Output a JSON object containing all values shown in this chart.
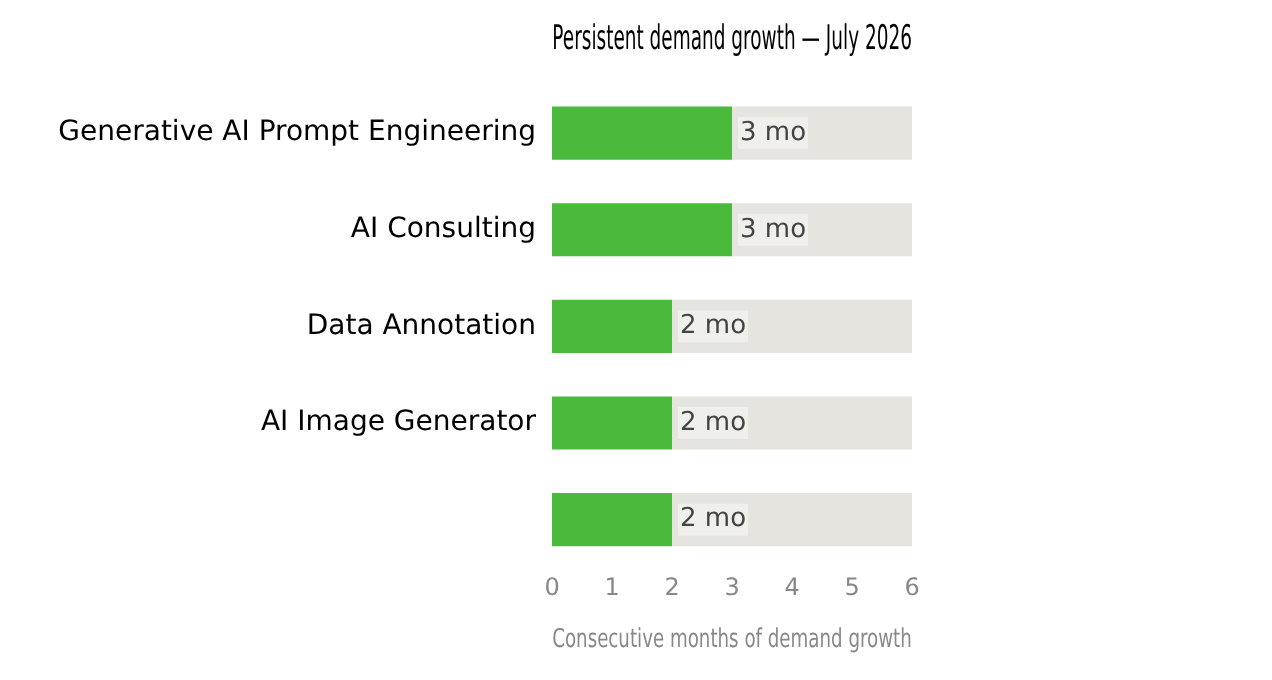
{
  "chart_data": {
    "type": "bar",
    "title": "Persistent demand growth — July 2026",
    "xlabel": "Consecutive months of demand growth",
    "orientation": "horizontal",
    "stacked": true,
    "categories": [
      "Generative AI Prompt Engineering",
      "AI Consulting",
      "Data Annotation",
      "AI Image Generator",
      null
    ],
    "series": [
      {
        "color": "#4ab93c",
        "values": [
          3,
          3,
          2,
          2,
          2
        ],
        "value_labels": [
          "3 mo",
          "3 mo",
          "2 mo",
          "2 mo",
          "2 mo"
        ]
      },
      {
        "color": "#e5e4df",
        "values": [
          3,
          3,
          4,
          4,
          4
        ]
      }
    ],
    "xlim": [
      0,
      6
    ],
    "xticks": [
      0,
      1,
      2,
      3,
      4,
      5,
      6
    ],
    "grid": false,
    "legend": false
  }
}
